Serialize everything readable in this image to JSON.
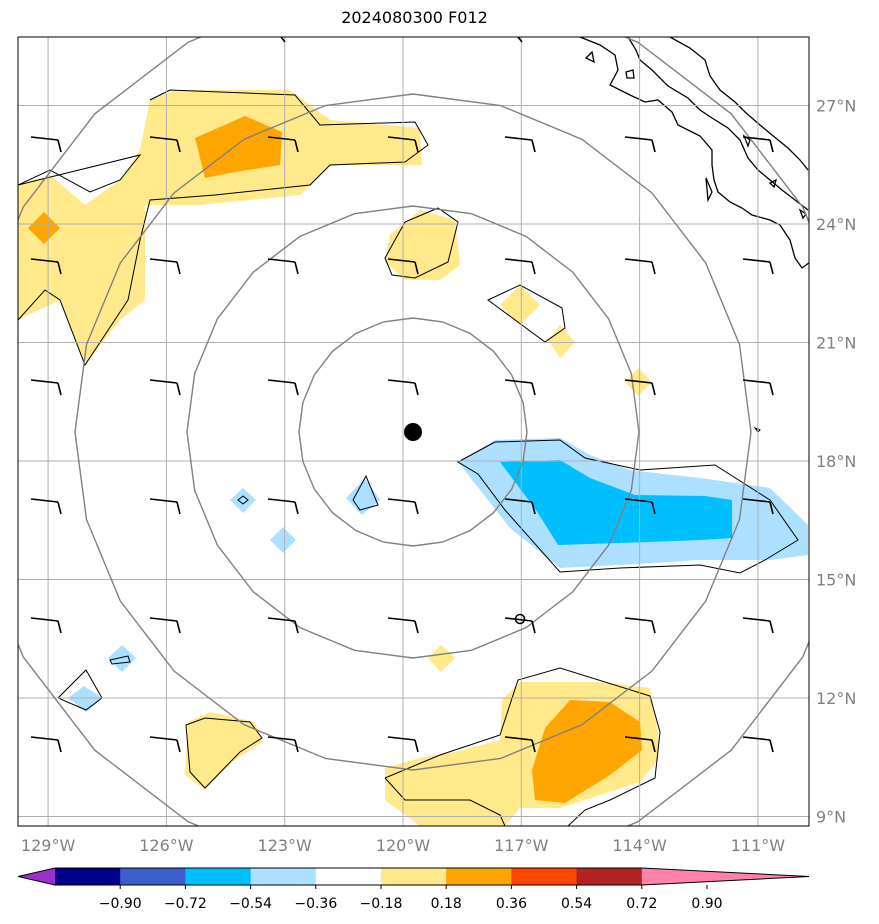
{
  "title": "2024080300 F012",
  "lat_labels": [
    {
      "lat": 27,
      "label": "27°N"
    },
    {
      "lat": 24,
      "label": "24°N"
    },
    {
      "lat": 21,
      "label": "21°N"
    },
    {
      "lat": 18,
      "label": "18°N"
    },
    {
      "lat": 15,
      "label": "15°N"
    },
    {
      "lat": 12,
      "label": "12°N"
    },
    {
      "lat": 9,
      "label": "9°N"
    }
  ],
  "lon_labels": [
    {
      "lon": -129,
      "label": "129°W"
    },
    {
      "lon": -126,
      "label": "126°W"
    },
    {
      "lon": -123,
      "label": "123°W"
    },
    {
      "lon": -120,
      "label": "120°W"
    },
    {
      "lon": -117,
      "label": "117°W"
    },
    {
      "lon": -114,
      "label": "114°W"
    },
    {
      "lon": -111,
      "label": "111°W"
    }
  ],
  "colorbar": {
    "colors": [
      "#9932CC",
      "#00008B",
      "#3A5FCD",
      "#00BFFF",
      "#ADDFFF",
      "#FFFFFF",
      "#FFE98A",
      "#FFA500",
      "#FF4500",
      "#B22222",
      "#FF82AB"
    ],
    "tick_labels": [
      "−0.90",
      "−0.72",
      "−0.54",
      "−0.36",
      "−0.18",
      "0.18",
      "0.36",
      "0.54",
      "0.72",
      "0.90"
    ]
  },
  "storm_center": {
    "lon": -119.8,
    "lat": 18.7
  },
  "colors": {
    "grid": "#b0b0b0",
    "ring": "#808080",
    "coast": "#000000",
    "pos1": "#FFE98A",
    "pos2": "#FFA500",
    "neg1": "#ADDFFF",
    "neg2": "#00BFFF"
  }
}
